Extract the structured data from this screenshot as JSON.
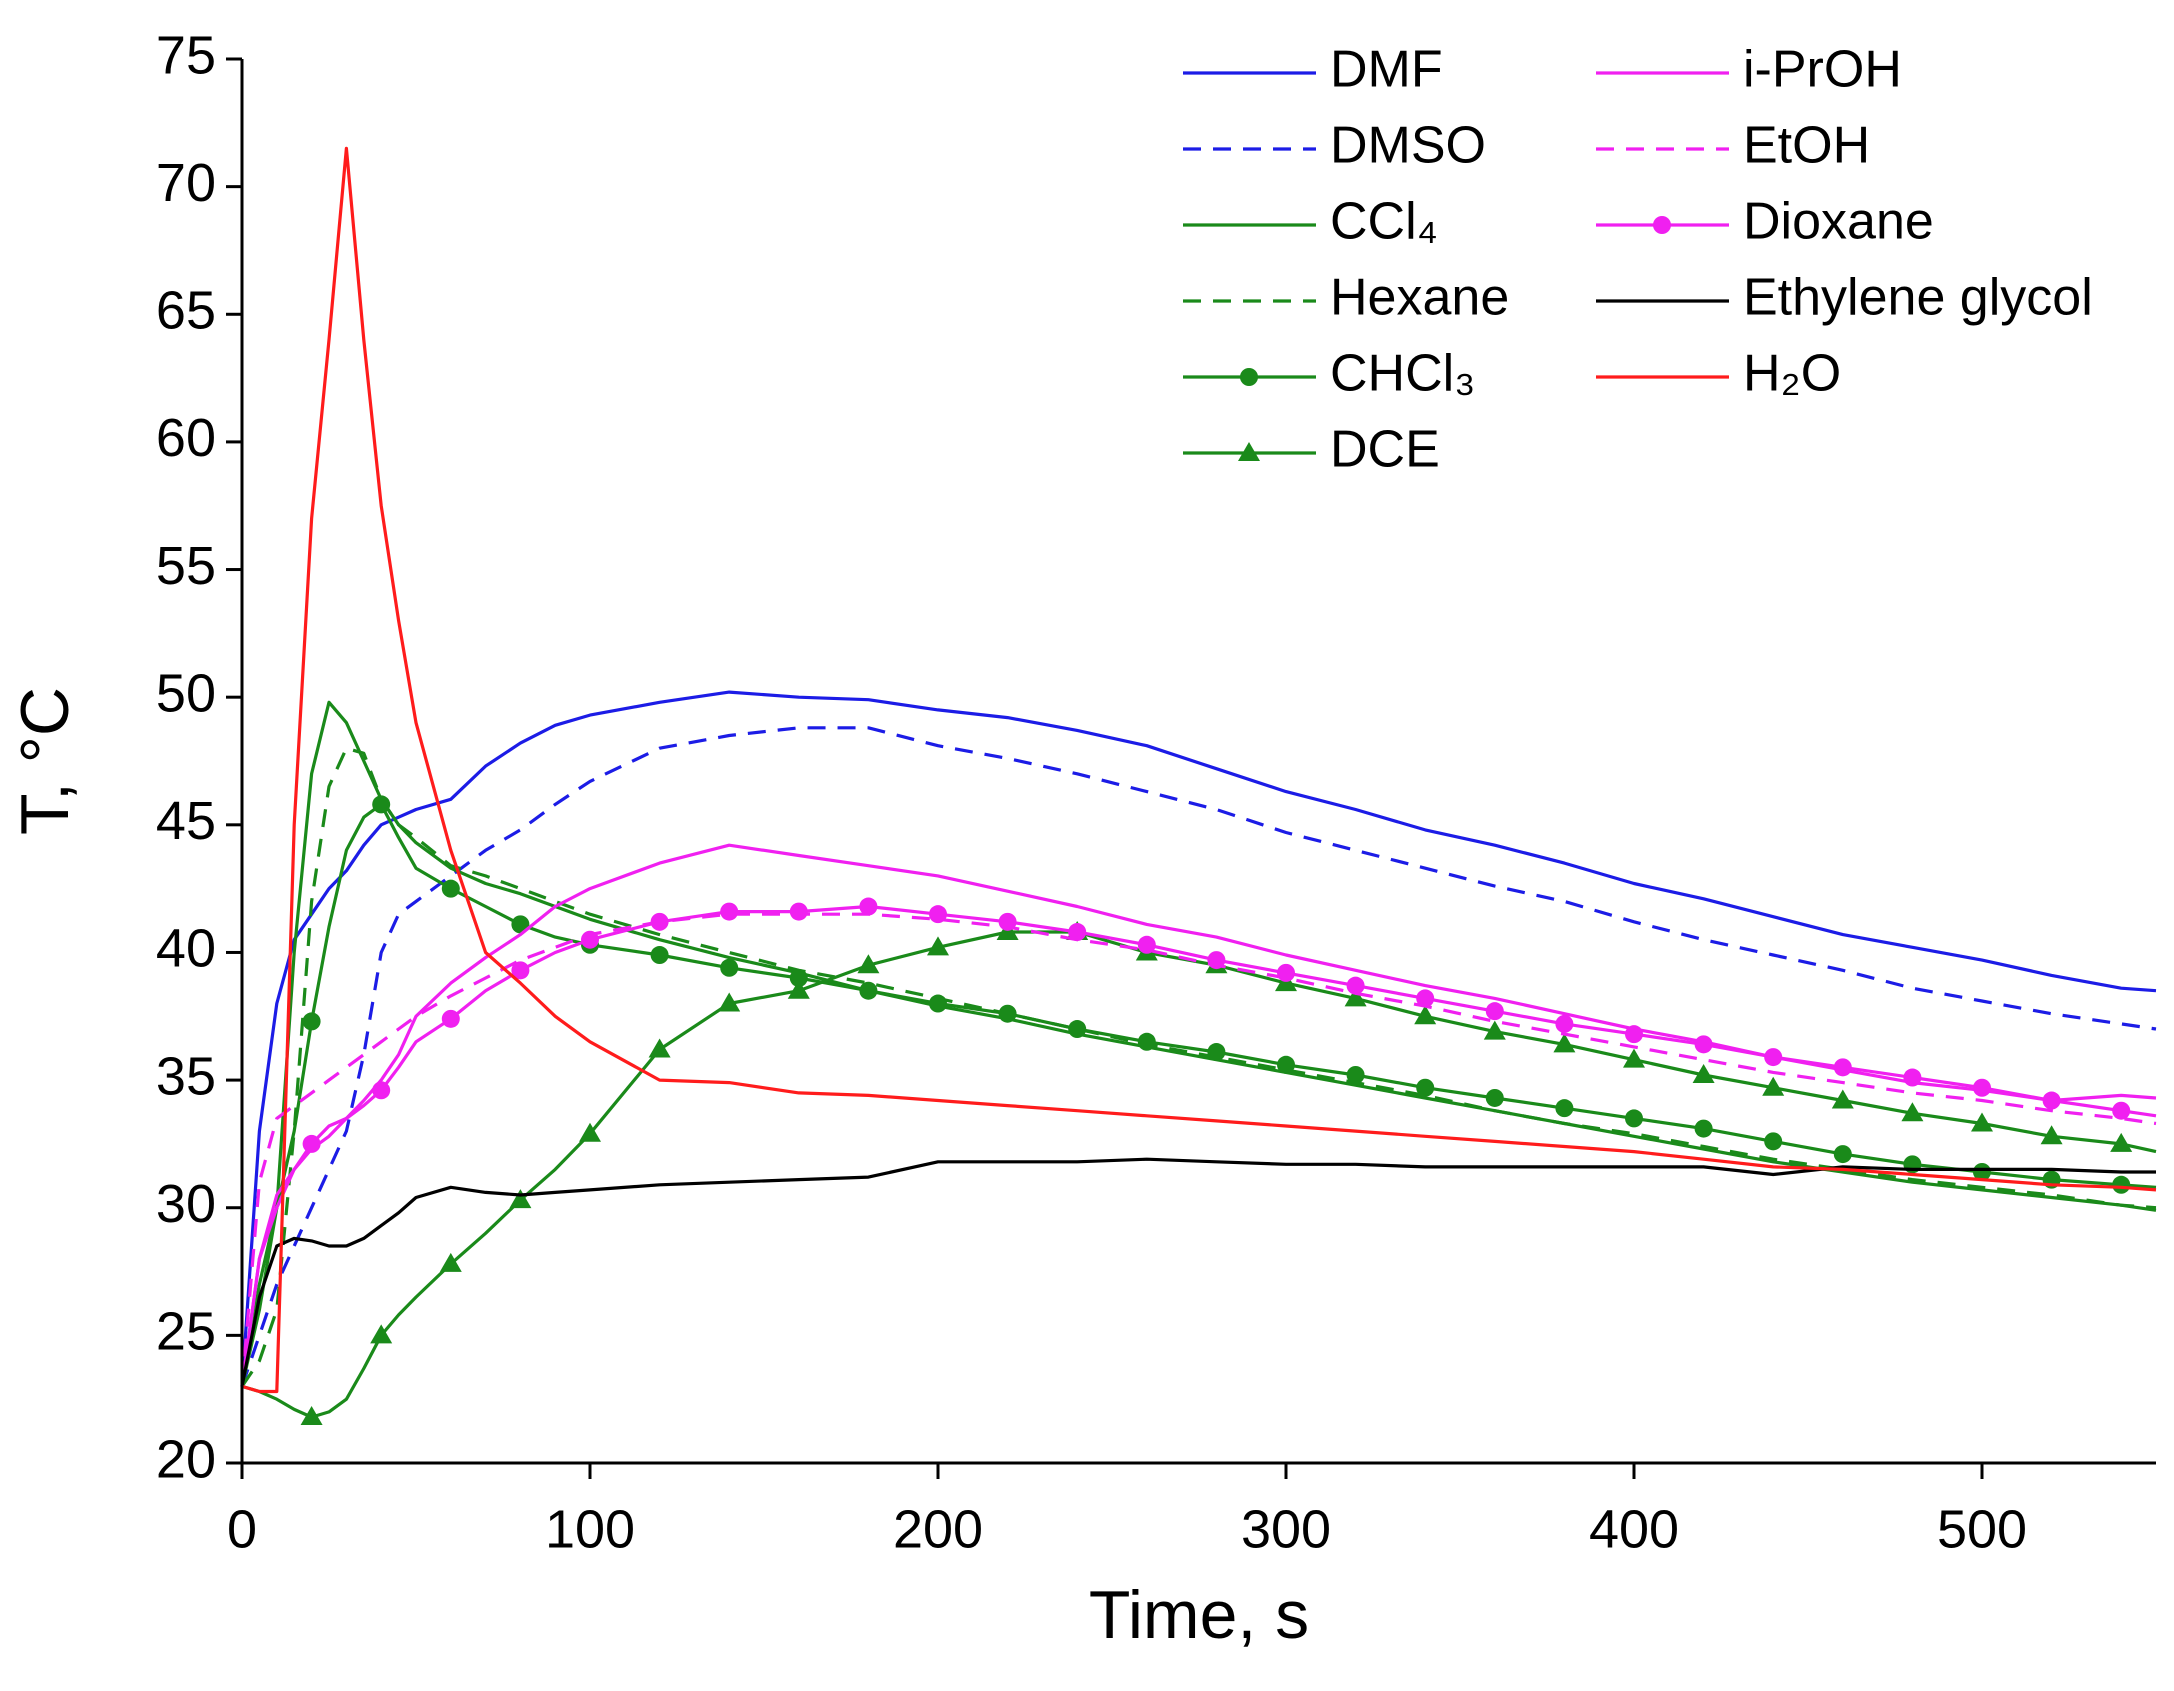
{
  "chart_data": {
    "type": "line",
    "xlabel": "Time, s",
    "ylabel": "T, °C",
    "x": [
      0,
      5,
      10,
      15,
      20,
      25,
      30,
      35,
      40,
      45,
      50,
      60,
      70,
      80,
      90,
      100,
      120,
      140,
      160,
      180,
      200,
      220,
      240,
      260,
      280,
      300,
      320,
      340,
      360,
      380,
      400,
      420,
      440,
      460,
      480,
      500,
      520,
      540,
      550
    ],
    "xlim": [
      0,
      550
    ],
    "xticks": [
      0,
      100,
      200,
      300,
      400,
      500
    ],
    "ylim": [
      20,
      75
    ],
    "yticks": [
      20,
      25,
      30,
      35,
      40,
      45,
      50,
      55,
      60,
      65,
      70,
      75
    ],
    "series": [
      {
        "name": "DMF",
        "color": "#1c1ce6",
        "dash": false,
        "values": [
          23,
          33,
          38,
          40.5,
          41.5,
          42.5,
          43.2,
          44.2,
          45,
          45.3,
          45.6,
          46,
          47.3,
          48.2,
          48.9,
          49.3,
          49.8,
          50.2,
          50,
          49.9,
          49.5,
          49.2,
          48.7,
          48.1,
          47.2,
          46.3,
          45.6,
          44.8,
          44.2,
          43.5,
          42.7,
          42.1,
          41.4,
          40.7,
          40.2,
          39.7,
          39.1,
          38.6,
          38.5
        ]
      },
      {
        "name": "DMSO",
        "color": "#1c1ce6",
        "dash": true,
        "values": [
          23,
          25,
          27,
          28.5,
          30,
          31.5,
          33,
          36,
          40,
          41.5,
          42,
          43,
          44,
          44.8,
          45.8,
          46.7,
          48,
          48.5,
          48.8,
          48.8,
          48.1,
          47.6,
          47,
          46.3,
          45.6,
          44.7,
          44,
          43.3,
          42.6,
          42,
          41.2,
          40.5,
          39.9,
          39.3,
          38.6,
          38.1,
          37.6,
          37.2,
          37
        ]
      },
      {
        "name": "CCl₄",
        "color": "#1a8a1a",
        "dash": false,
        "values": [
          23,
          26,
          30,
          40,
          47,
          49.8,
          49,
          47.5,
          46,
          45,
          44.3,
          43.3,
          42.7,
          42.3,
          41.8,
          41.3,
          40.5,
          39.8,
          39.2,
          38.5,
          37.9,
          37.4,
          36.8,
          36.3,
          35.8,
          35.3,
          34.8,
          34.3,
          33.8,
          33.3,
          32.8,
          32.3,
          31.8,
          31.4,
          31,
          30.7,
          30.4,
          30.1,
          29.9
        ]
      },
      {
        "name": "Hexane",
        "color": "#1a8a1a",
        "dash": true,
        "values": [
          23,
          24,
          26,
          33,
          42,
          46.5,
          48,
          47.8,
          46,
          45,
          44.5,
          43.4,
          43,
          42.5,
          42,
          41.5,
          40.7,
          40,
          39.3,
          38.8,
          38.2,
          37.6,
          37,
          36.4,
          35.9,
          35.4,
          34.9,
          34.4,
          33.8,
          33.3,
          32.9,
          32.4,
          31.9,
          31.5,
          31.1,
          30.8,
          30.5,
          30.1,
          30
        ]
      },
      {
        "name": "CHCl₃",
        "color": "#1a8a1a",
        "dash": false,
        "marker": "circle",
        "values": [
          23,
          27,
          30,
          33,
          37.3,
          41,
          44,
          45.3,
          45.8,
          44.5,
          43.3,
          42.5,
          41.8,
          41.1,
          40.6,
          40.3,
          39.9,
          39.4,
          39,
          38.5,
          38,
          37.6,
          37,
          36.5,
          36.1,
          35.6,
          35.2,
          34.7,
          34.3,
          33.9,
          33.5,
          33.1,
          32.6,
          32.1,
          31.7,
          31.4,
          31.1,
          30.9,
          30.8
        ]
      },
      {
        "name": "DCE",
        "color": "#1a8a1a",
        "dash": false,
        "marker": "triangle",
        "values": [
          23,
          22.8,
          22.5,
          22.1,
          21.8,
          22,
          22.5,
          23.7,
          25,
          25.8,
          26.5,
          27.8,
          29,
          30.3,
          31.5,
          32.9,
          36.2,
          38,
          38.5,
          39.5,
          40.2,
          40.8,
          40.8,
          40,
          39.5,
          38.8,
          38.2,
          37.5,
          36.9,
          36.4,
          35.8,
          35.2,
          34.7,
          34.2,
          33.7,
          33.3,
          32.8,
          32.5,
          32.2
        ]
      },
      {
        "name": "i-PrOH",
        "color": "#f020f0",
        "dash": false,
        "values": [
          23,
          28,
          30,
          31.5,
          32.3,
          32.8,
          33.5,
          34.2,
          35,
          36,
          37.5,
          38.8,
          39.8,
          40.7,
          41.8,
          42.5,
          43.5,
          44.2,
          43.8,
          43.4,
          43,
          42.4,
          41.8,
          41.1,
          40.6,
          39.9,
          39.3,
          38.7,
          38.2,
          37.6,
          37,
          36.5,
          35.9,
          35.4,
          34.9,
          34.6,
          34.2,
          34.4,
          34.3
        ]
      },
      {
        "name": "EtOH",
        "color": "#f020f0",
        "dash": true,
        "values": [
          23,
          31,
          33.5,
          34,
          34.5,
          35,
          35.5,
          36,
          36.5,
          37,
          37.5,
          38.3,
          39,
          39.7,
          40.2,
          40.7,
          41.2,
          41.5,
          41.5,
          41.5,
          41.3,
          41,
          40.5,
          40.1,
          39.5,
          39,
          38.4,
          37.9,
          37.3,
          36.8,
          36.3,
          35.8,
          35.3,
          34.9,
          34.5,
          34.2,
          33.8,
          33.5,
          33.3
        ]
      },
      {
        "name": "Dioxane",
        "color": "#f020f0",
        "dash": false,
        "marker": "circle",
        "values": [
          23,
          28,
          30.5,
          31.5,
          32.5,
          33.2,
          33.5,
          34,
          34.6,
          35.5,
          36.5,
          37.4,
          38.5,
          39.3,
          40,
          40.5,
          41.2,
          41.6,
          41.6,
          41.8,
          41.5,
          41.2,
          40.8,
          40.3,
          39.7,
          39.2,
          38.7,
          38.2,
          37.7,
          37.2,
          36.8,
          36.4,
          35.9,
          35.5,
          35.1,
          34.7,
          34.2,
          33.8,
          33.6
        ]
      },
      {
        "name": "Ethylene glycol",
        "color": "#000000",
        "dash": false,
        "values": [
          23,
          26.5,
          28.5,
          28.8,
          28.7,
          28.5,
          28.5,
          28.8,
          29.3,
          29.8,
          30.4,
          30.8,
          30.6,
          30.5,
          30.6,
          30.7,
          30.9,
          31,
          31.1,
          31.2,
          31.8,
          31.8,
          31.8,
          31.9,
          31.8,
          31.7,
          31.7,
          31.6,
          31.6,
          31.6,
          31.6,
          31.6,
          31.3,
          31.6,
          31.5,
          31.5,
          31.5,
          31.4,
          31.4
        ]
      },
      {
        "name": "H₂O",
        "color": "#ff1c1c",
        "dash": false,
        "values": [
          23,
          22.8,
          22.8,
          45,
          57,
          64,
          71.5,
          64,
          57.5,
          53,
          49,
          44,
          40,
          38.8,
          37.5,
          36.5,
          35,
          34.9,
          34.5,
          34.4,
          34.2,
          34,
          33.8,
          33.6,
          33.4,
          33.2,
          33,
          32.8,
          32.6,
          32.4,
          32.2,
          31.9,
          31.6,
          31.5,
          31.3,
          31.1,
          30.9,
          30.8,
          30.7
        ]
      }
    ]
  }
}
